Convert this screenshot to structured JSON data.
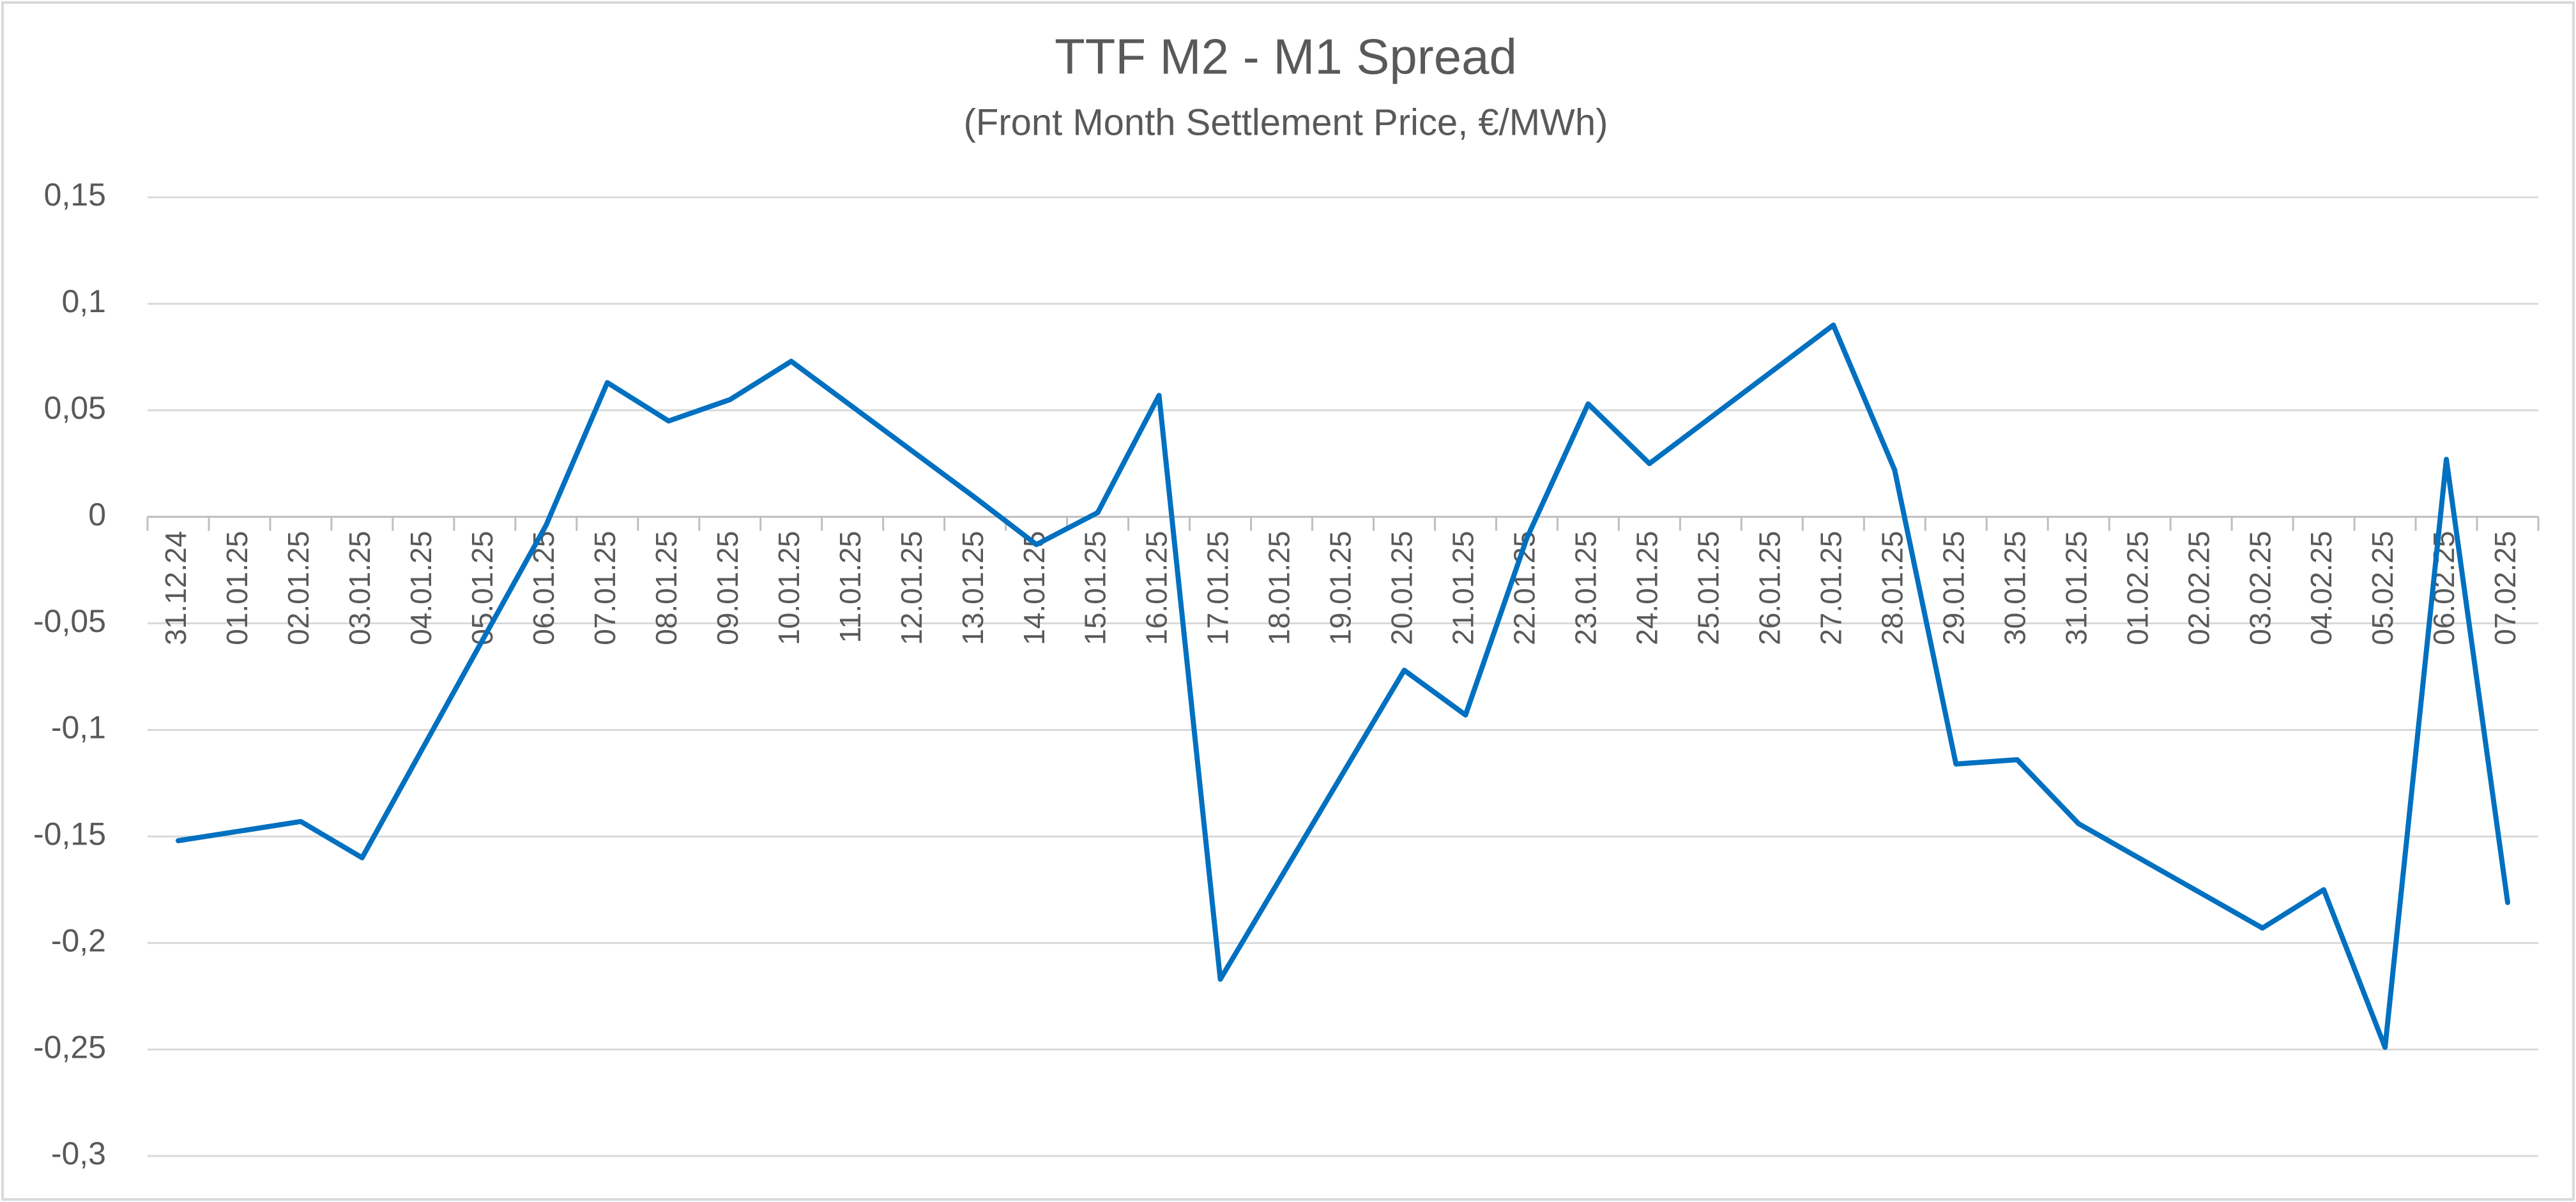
{
  "chart_data": {
    "type": "line",
    "title": "TTF M2 - M1 Spread",
    "subtitle": "(Front Month Settlement Price, €/MWh)",
    "x": [
      "31.12.24",
      "02.01.25",
      "03.01.25",
      "06.01.25",
      "07.01.25",
      "08.01.25",
      "09.01.25",
      "10.01.25",
      "13.01.25",
      "14.01.25",
      "15.01.25",
      "16.01.25",
      "17.01.25",
      "20.01.25",
      "21.01.25",
      "22.01.25",
      "23.01.25",
      "24.01.25",
      "27.01.25",
      "28.01.25",
      "29.01.25",
      "30.01.25",
      "31.01.25",
      "03.02.25",
      "04.02.25",
      "05.02.25",
      "06.02.25",
      "07.02.25"
    ],
    "xticks": [
      "31.12.24",
      "01.01.25",
      "02.01.25",
      "03.01.25",
      "04.01.25",
      "05.01.25",
      "06.01.25",
      "07.01.25",
      "08.01.25",
      "09.01.25",
      "10.01.25",
      "11.01.25",
      "12.01.25",
      "13.01.25",
      "14.01.25",
      "15.01.25",
      "16.01.25",
      "17.01.25",
      "18.01.25",
      "19.01.25",
      "20.01.25",
      "21.01.25",
      "22.01.25",
      "23.01.25",
      "24.01.25",
      "25.01.25",
      "26.01.25",
      "27.01.25",
      "28.01.25",
      "29.01.25",
      "30.01.25",
      "31.01.25",
      "01.02.25",
      "02.02.25",
      "03.02.25",
      "04.02.25",
      "05.02.25",
      "06.02.25",
      "07.02.25"
    ],
    "series": [
      {
        "color": "#0070c0",
        "values": [
          -0.152,
          -0.143,
          -0.16,
          -0.004,
          0.063,
          0.045,
          0.055,
          0.073,
          0.009,
          -0.013,
          0.002,
          0.057,
          -0.217,
          -0.072,
          -0.093,
          -0.01,
          0.053,
          0.025,
          0.09,
          0.022,
          -0.116,
          -0.114,
          -0.144,
          -0.193,
          -0.175,
          -0.249,
          0.027,
          -0.181
        ]
      }
    ],
    "ylim": [
      -0.3,
      0.15
    ],
    "yticks": [
      {
        "value": 0.15,
        "label": "0,15"
      },
      {
        "value": 0.1,
        "label": "0,1"
      },
      {
        "value": 0.05,
        "label": "0,05"
      },
      0,
      {
        "value": -0.05,
        "label": "-0,05"
      },
      {
        "value": -0.1,
        "label": "-0,1"
      },
      {
        "value": -0.15,
        "label": "-0,15"
      },
      {
        "value": -0.2,
        "label": "-0,2"
      },
      {
        "value": -0.25,
        "label": "-0,25"
      },
      {
        "value": -0.3,
        "label": "-0,3"
      }
    ],
    "grid": true
  }
}
